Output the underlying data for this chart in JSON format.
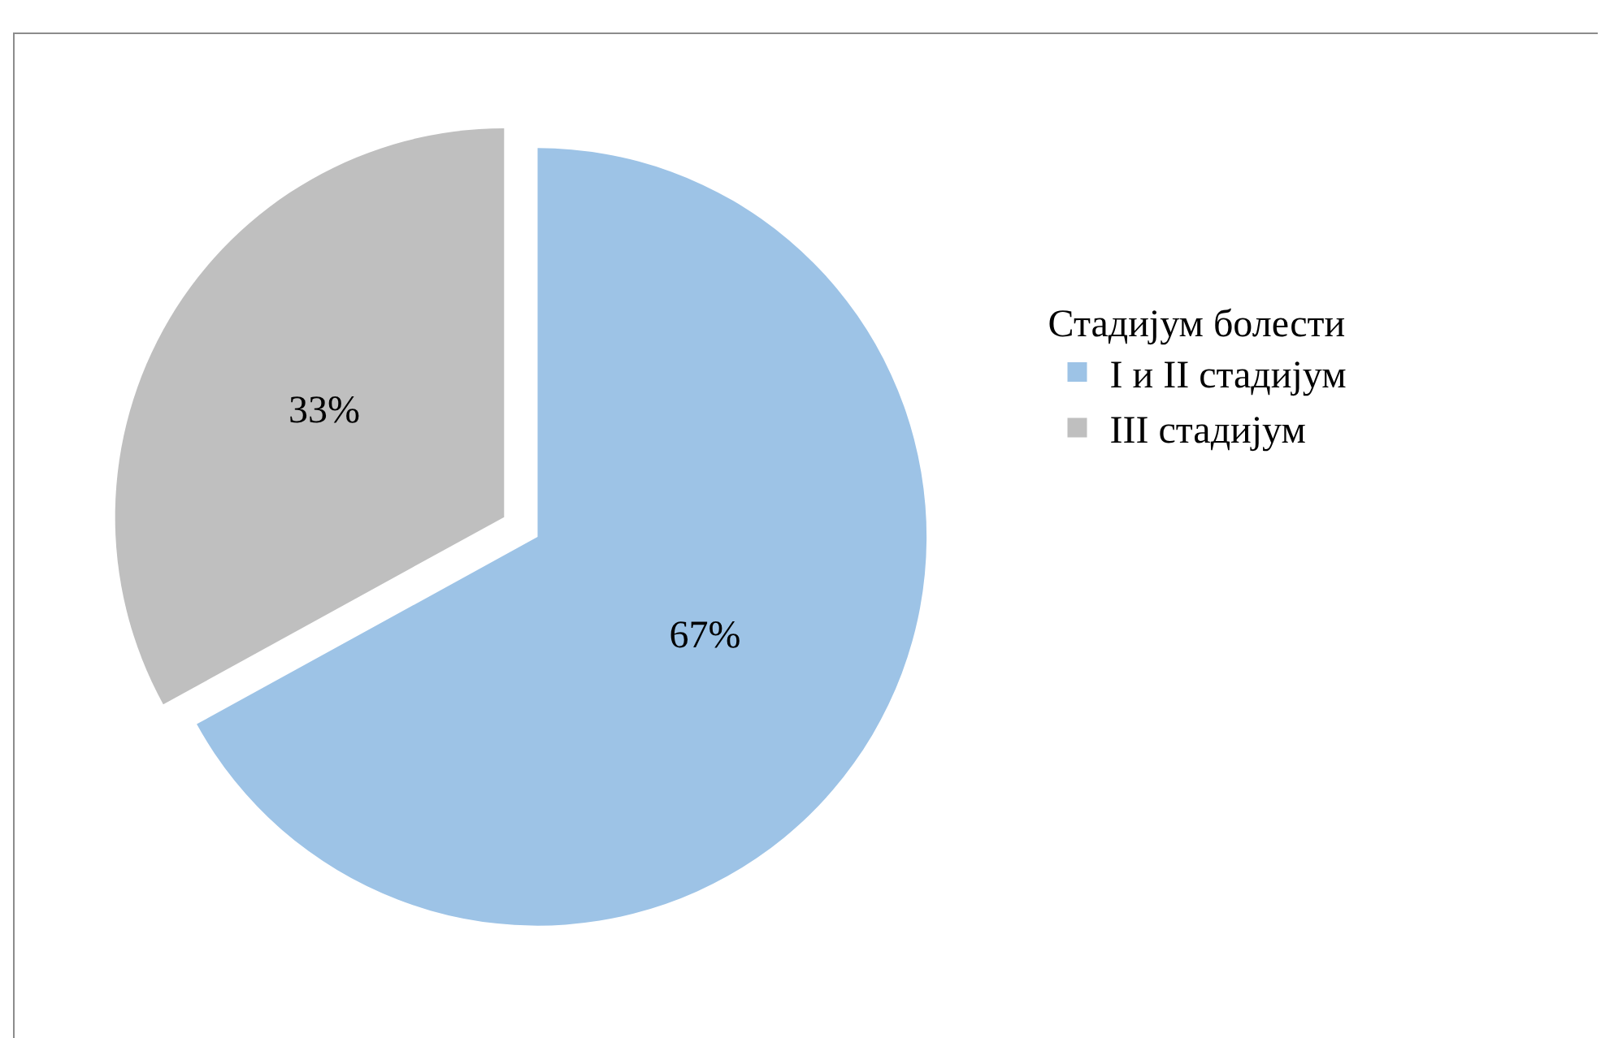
{
  "chart_data": {
    "type": "pie",
    "legend_title": "Стадијум болести",
    "categories": [
      "I и II стадијум",
      "III стадијум"
    ],
    "values": [
      67,
      33
    ],
    "value_labels": [
      "67%",
      "33%"
    ],
    "colors": [
      "#9dc3e6",
      "#bfbfbf"
    ],
    "legend": "right"
  }
}
